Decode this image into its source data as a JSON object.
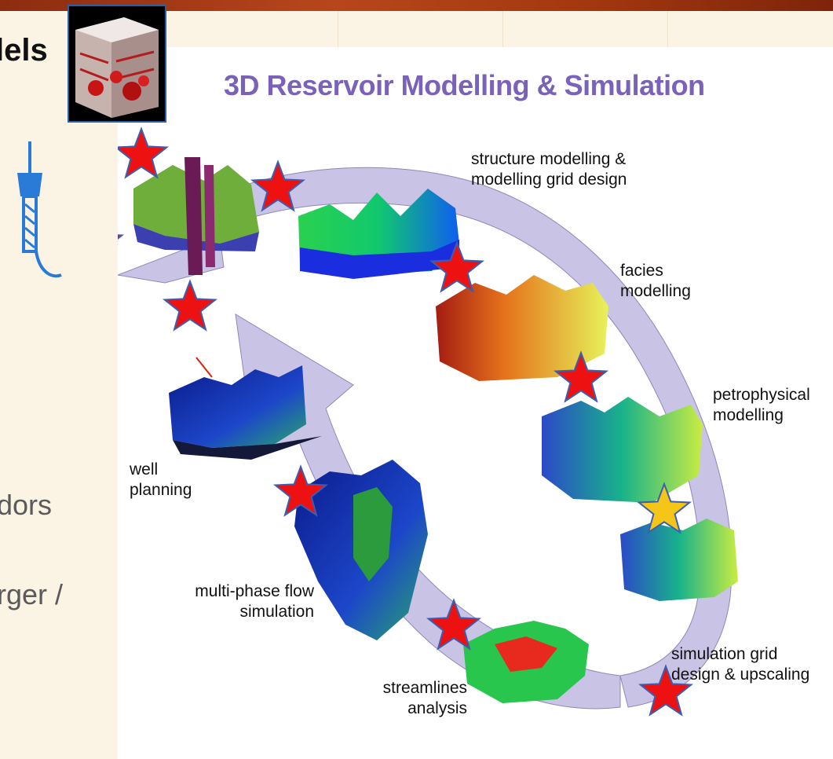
{
  "slide": {
    "title_fragment": "lels",
    "text_fragment_1": "dors",
    "text_fragment_2": "rger /"
  },
  "diagram": {
    "title": "3D Reservoir Modelling & Simulation",
    "stages": [
      {
        "label": "structure modelling &\nmodelling grid design"
      },
      {
        "label": "facies\nmodelling"
      },
      {
        "label": "petrophysical\nmodelling"
      },
      {
        "label": "simulation grid\ndesign & upscaling"
      },
      {
        "label": "streamlines\nanalysis"
      },
      {
        "label": "multi-phase flow\nsimulation"
      },
      {
        "label": "well\nplanning"
      }
    ]
  },
  "colors": {
    "title": "#7a62b8",
    "arrow": "#c9c3e6",
    "star_red": "#ee1111",
    "star_gold": "#f5c518",
    "star_outline": "#3a5fb0",
    "top_bar": "#a3380f"
  },
  "icons": [
    "3d-cube-thumbnail-icon",
    "well-derrick-icon",
    "star-marker-icon"
  ]
}
